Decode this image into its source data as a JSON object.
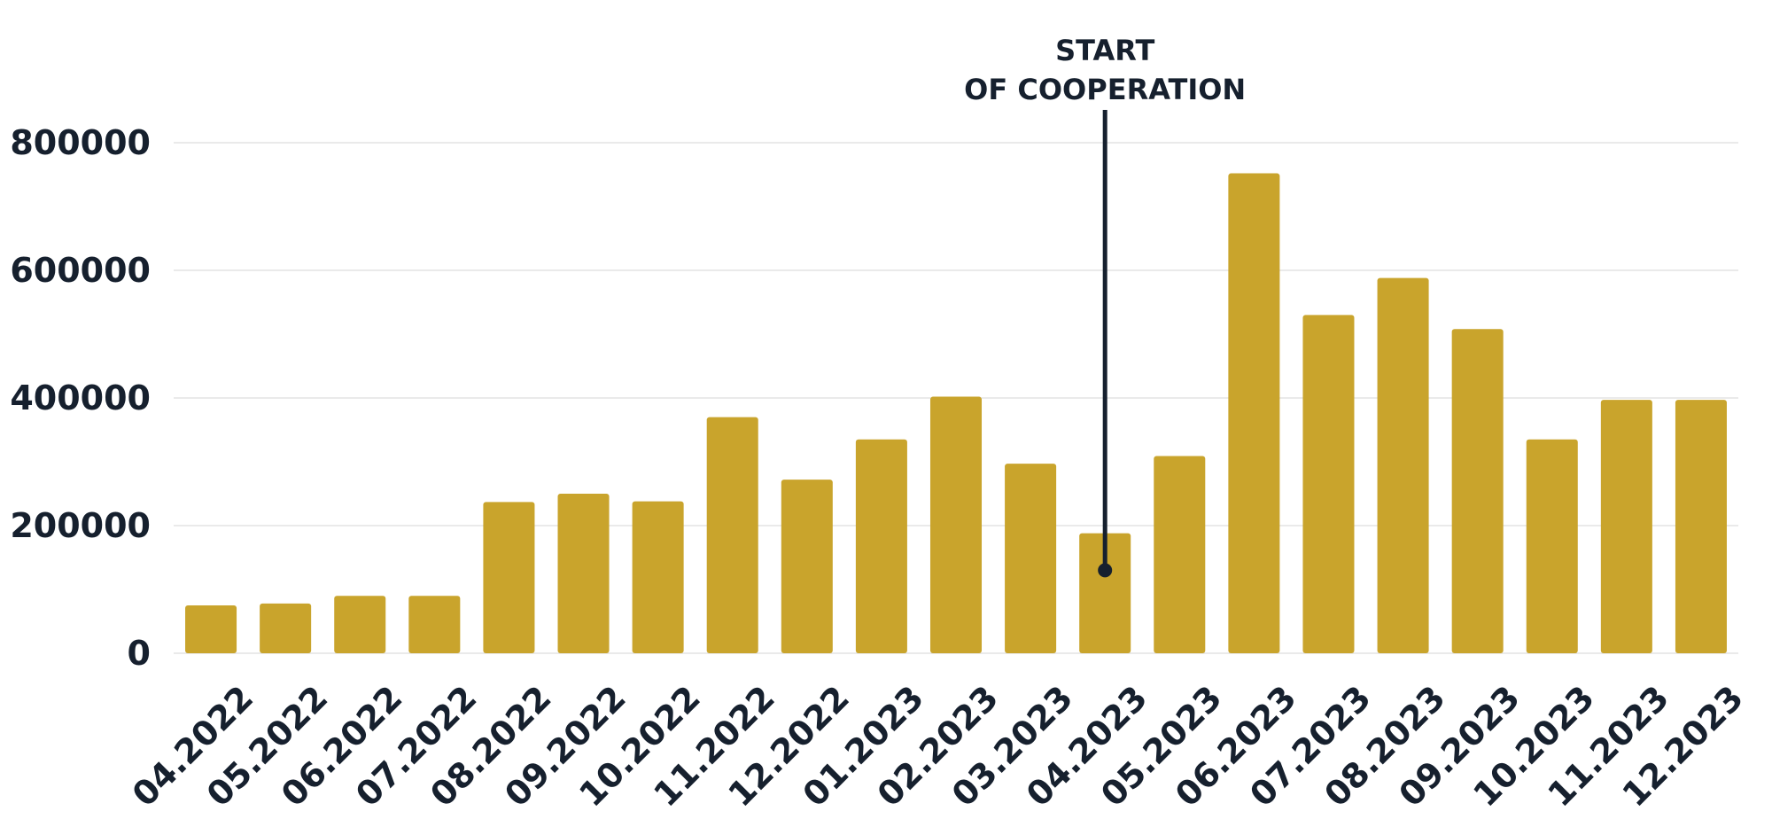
{
  "chart_data": {
    "type": "bar",
    "title": "",
    "xlabel": "",
    "ylabel": "",
    "categories": [
      "04.2022",
      "05.2022",
      "06.2022",
      "07.2022",
      "08.2022",
      "09.2022",
      "10.2022",
      "11.2022",
      "12.2022",
      "01.2023",
      "02.2023",
      "03.2023",
      "04.2023",
      "05.2023",
      "06.2023",
      "07.2023",
      "08.2023",
      "09.2023",
      "10.2023",
      "11.2023",
      "12.2023"
    ],
    "values": [
      75000,
      78000,
      90000,
      90000,
      237000,
      250000,
      238000,
      370000,
      272000,
      335000,
      402000,
      297000,
      188000,
      309000,
      752000,
      530000,
      588000,
      508000,
      335000,
      397000,
      397000
    ],
    "ylim": [
      0,
      800000
    ],
    "yticks": [
      0,
      200000,
      400000,
      600000,
      800000
    ],
    "ytick_labels": [
      "0",
      "200000",
      "400000",
      "600000",
      "800000"
    ],
    "grid": true,
    "bar_color": "#c9a42c",
    "text_color": "#16202e",
    "grid_color": "#e3e3e3",
    "annotation": {
      "lines": [
        "START",
        "OF COOPERATION"
      ],
      "category": "04.2023",
      "point_value": 130000,
      "color": "#16202e"
    }
  }
}
